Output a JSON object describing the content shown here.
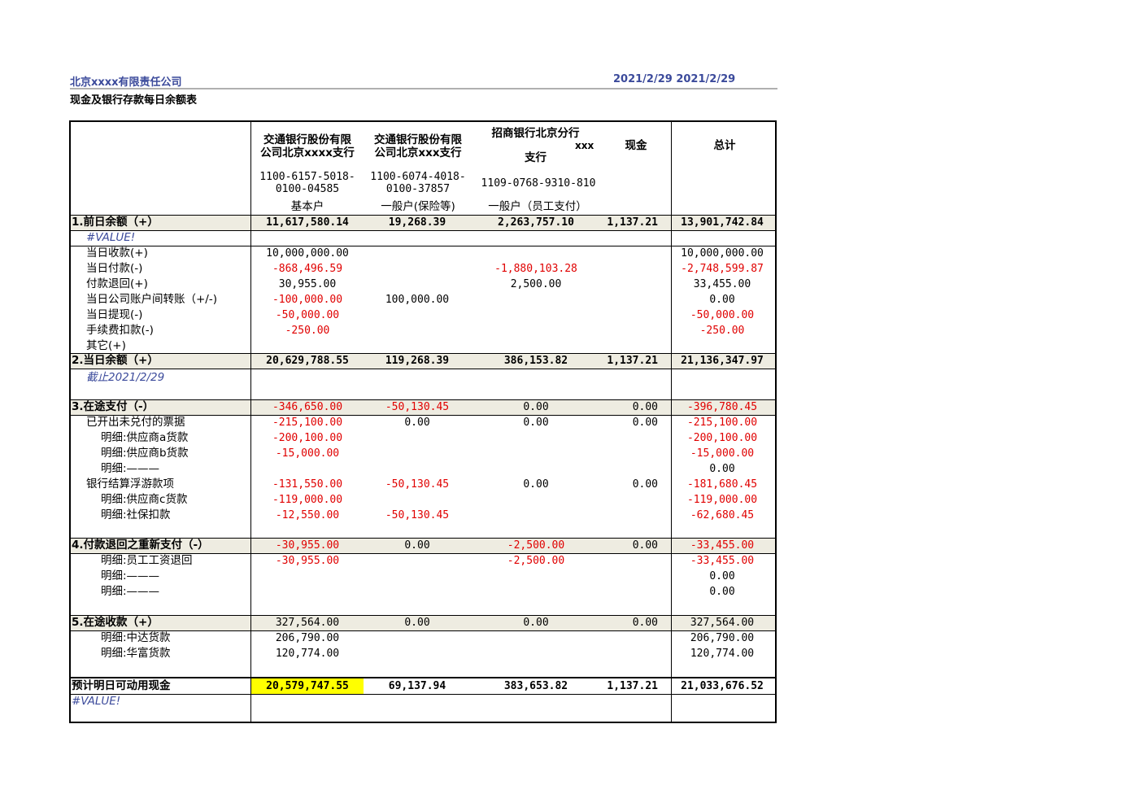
{
  "header": {
    "company": "北京xxxx有限责任公司",
    "date": "2021/2/29 2021/2/29",
    "title": "现金及银行存款每日余额表"
  },
  "columns": {
    "bank1_name_line1": "交通银行股份有限",
    "bank1_name_line2": "公司北京xxxx支行",
    "bank1_account_line1": "1100-6157-5018-",
    "bank1_account_line2": "0100-04585",
    "bank1_type": "基本户",
    "bank2_name_line1": "交通银行股份有限",
    "bank2_name_line2": "公司北京xxx支行",
    "bank2_account_line1": "1100-6074-4018-",
    "bank2_account_line2": "0100-37857",
    "bank2_type": "一般户(保险等)",
    "bank3_name_line1": "招商银行北京分行",
    "bank3_name_xxx": "xxx",
    "bank3_name_line2": "支行",
    "bank3_account": "1109-0768-9310-810",
    "bank3_type": "一般户（员工支付）",
    "cash": "现金",
    "total": "总计"
  },
  "rows": {
    "prev_balance": {
      "label": "1.前日余额（+）",
      "b1": "11,617,580.14",
      "b2": "19,268.39",
      "b3": "2,263,757.10",
      "cash": "1,137.21",
      "total": "13,901,742.84"
    },
    "value_err1": "#VALUE!",
    "receipts": {
      "label": "当日收款(+)",
      "b1": "10,000,000.00",
      "total": "10,000,000.00"
    },
    "payments": {
      "label": "当日付款(-)",
      "b1": "-868,496.59",
      "b3": "-1,880,103.28",
      "total": "-2,748,599.87"
    },
    "refunds": {
      "label": "付款退回(+)",
      "b1": "30,955.00",
      "b3": "2,500.00",
      "total": "33,455.00"
    },
    "transfers": {
      "label": "当日公司账户间转账（+/-)",
      "b1": "-100,000.00",
      "b2": "100,000.00",
      "total": "0.00"
    },
    "withdraw": {
      "label": "当日提现(-)",
      "b1": "-50,000.00",
      "total": "-50,000.00"
    },
    "fees": {
      "label": "手续费扣款(-)",
      "b1": "-250.00",
      "total": "-250.00"
    },
    "other": {
      "label": "其它(+)"
    },
    "today_balance": {
      "label": "2.当日余额（+）",
      "b1": "20,629,788.55",
      "b2": "119,268.39",
      "b3": "386,153.82",
      "cash": "1,137.21",
      "total": "21,136,347.97"
    },
    "as_of": "截止2021/2/29",
    "in_transit_pay": {
      "label": "3.在途支付（-）",
      "b1": "-346,650.00",
      "b2": "-50,130.45",
      "b3": "0.00",
      "cash": "0.00",
      "total": "-396,780.45"
    },
    "unpaid_notes": {
      "label": "已开出未兑付的票据",
      "b1": "-215,100.00",
      "b2": "0.00",
      "b3": "0.00",
      "cash": "0.00",
      "total": "-215,100.00"
    },
    "detail_a": {
      "label": "明细:供应商a货款",
      "b1": "-200,100.00",
      "total": "-200,100.00"
    },
    "detail_b": {
      "label": "明细:供应商b货款",
      "b1": "-15,000.00",
      "total": "-15,000.00"
    },
    "detail_dash1": {
      "label": "明细:———",
      "total": "0.00"
    },
    "float": {
      "label": "银行结算浮游款项",
      "b1": "-131,550.00",
      "b2": "-50,130.45",
      "b3": "0.00",
      "cash": "0.00",
      "total": "-181,680.45"
    },
    "detail_c": {
      "label": "明细:供应商c货款",
      "b1": "-119,000.00",
      "total": "-119,000.00"
    },
    "detail_social": {
      "label": "明细:社保扣款",
      "b1": "-12,550.00",
      "b2": "-50,130.45",
      "total": "-62,680.45"
    },
    "repay": {
      "label": "4.付款退回之重新支付（-）",
      "b1": "-30,955.00",
      "b2": "0.00",
      "b3": "-2,500.00",
      "cash": "0.00",
      "total": "-33,455.00"
    },
    "detail_wage": {
      "label": "明细:员工工资退回",
      "b1": "-30,955.00",
      "b3": "-2,500.00",
      "total": "-33,455.00"
    },
    "detail_dash2": {
      "label": "明细:———",
      "total": "0.00"
    },
    "detail_dash3": {
      "label": "明细:———",
      "total": "0.00"
    },
    "in_transit_recv": {
      "label": "5.在途收款（+）",
      "b1": "327,564.00",
      "b2": "0.00",
      "b3": "0.00",
      "cash": "0.00",
      "total": "327,564.00"
    },
    "detail_zhongda": {
      "label": "明细:中达货款",
      "b1": "206,790.00",
      "total": "206,790.00"
    },
    "detail_huafu": {
      "label": "明细:华富货款",
      "b1": "120,774.00",
      "total": "120,774.00"
    },
    "forecast": {
      "label": "预计明日可动用现金",
      "b1": "20,579,747.55",
      "b2": "69,137.94",
      "b3": "383,653.82",
      "cash": "1,137.21",
      "total": "21,033,676.52"
    },
    "value_err2": "#VALUE!"
  },
  "colors": {
    "header_text": "#3b4a9b",
    "negative": "#e00000",
    "band": "#eeece1",
    "highlight": "#ffff00"
  }
}
